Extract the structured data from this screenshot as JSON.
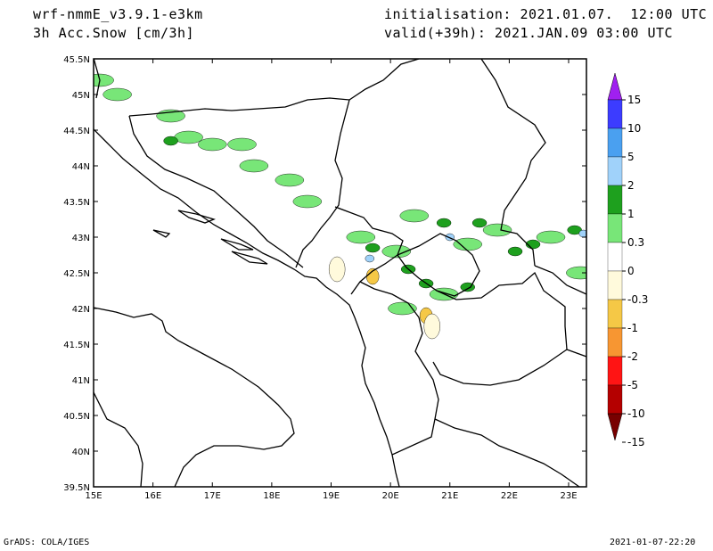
{
  "header": {
    "model": "wrf-nmmE_v3.9.1-e3km",
    "field": "3h Acc.Snow [cm/3h]",
    "init": "initialisation: 2021.01.07.  12:00 UTC",
    "valid": "valid(+39h): 2021.JAN.09 03:00 UTC"
  },
  "footer": {
    "credit": "GrADS: COLA/IGES",
    "timestamp": "2021-01-07-22:20"
  },
  "map": {
    "lon_ticks": [
      "15E",
      "16E",
      "17E",
      "18E",
      "19E",
      "20E",
      "21E",
      "22E",
      "23E"
    ],
    "lat_ticks": [
      "45.5N",
      "45N",
      "44.5N",
      "44N",
      "43.5N",
      "43N",
      "42.5N",
      "42N",
      "41.5N",
      "41N",
      "40.5N",
      "40N",
      "39.5N"
    ],
    "lon_range": [
      15,
      23.3
    ],
    "lat_range": [
      39.5,
      45.5
    ],
    "snow_patches": [
      {
        "lon": 15.1,
        "lat": 45.2,
        "cls": "0.3"
      },
      {
        "lon": 15.4,
        "lat": 45.0,
        "cls": "0.3"
      },
      {
        "lon": 16.3,
        "lat": 44.7,
        "cls": "0.3"
      },
      {
        "lon": 16.6,
        "lat": 44.4,
        "cls": "0.3"
      },
      {
        "lon": 17.0,
        "lat": 44.3,
        "cls": "0.3"
      },
      {
        "lon": 16.3,
        "lat": 44.35,
        "cls": "1"
      },
      {
        "lon": 17.5,
        "lat": 44.3,
        "cls": "0.3"
      },
      {
        "lon": 17.7,
        "lat": 44.0,
        "cls": "0.3"
      },
      {
        "lon": 18.3,
        "lat": 43.8,
        "cls": "0.3"
      },
      {
        "lon": 18.6,
        "lat": 43.5,
        "cls": "0.3"
      },
      {
        "lon": 19.5,
        "lat": 43.0,
        "cls": "0.3"
      },
      {
        "lon": 19.7,
        "lat": 42.85,
        "cls": "1"
      },
      {
        "lon": 19.65,
        "lat": 42.7,
        "cls": "2"
      },
      {
        "lon": 20.1,
        "lat": 42.8,
        "cls": "0.3"
      },
      {
        "lon": 20.4,
        "lat": 43.3,
        "cls": "0.3"
      },
      {
        "lon": 20.9,
        "lat": 43.2,
        "cls": "1"
      },
      {
        "lon": 21.0,
        "lat": 43.0,
        "cls": "2"
      },
      {
        "lon": 21.3,
        "lat": 42.9,
        "cls": "0.3"
      },
      {
        "lon": 21.5,
        "lat": 43.2,
        "cls": "1"
      },
      {
        "lon": 21.8,
        "lat": 43.1,
        "cls": "0.3"
      },
      {
        "lon": 22.1,
        "lat": 42.8,
        "cls": "1"
      },
      {
        "lon": 22.4,
        "lat": 42.9,
        "cls": "1"
      },
      {
        "lon": 22.7,
        "lat": 43.0,
        "cls": "0.3"
      },
      {
        "lon": 23.1,
        "lat": 43.1,
        "cls": "1"
      },
      {
        "lon": 23.25,
        "lat": 43.05,
        "cls": "2"
      },
      {
        "lon": 20.3,
        "lat": 42.55,
        "cls": "1"
      },
      {
        "lon": 20.6,
        "lat": 42.35,
        "cls": "1"
      },
      {
        "lon": 20.9,
        "lat": 42.2,
        "cls": "0.3"
      },
      {
        "lon": 21.3,
        "lat": 42.3,
        "cls": "1"
      },
      {
        "lon": 20.2,
        "lat": 42.0,
        "cls": "0.3"
      },
      {
        "lon": 23.2,
        "lat": 42.5,
        "cls": "0.3"
      }
    ],
    "melt_patches": [
      {
        "lon": 19.7,
        "lat": 42.45,
        "cls": "-1"
      },
      {
        "lon": 20.6,
        "lat": 41.9,
        "cls": "-1"
      },
      {
        "lon": 20.7,
        "lat": 41.75,
        "cls": "-0.3"
      },
      {
        "lon": 19.1,
        "lat": 42.55,
        "cls": "-0.3"
      }
    ]
  },
  "colorbar": {
    "labels": [
      "15",
      "10",
      "5",
      "2",
      "1",
      "0.3",
      "0",
      "-0.3",
      "-1",
      "-2",
      "-5",
      "-10",
      "-15"
    ],
    "colors": [
      "#3c3cff",
      "#4aa0f0",
      "#a0d2fa",
      "#1ea01e",
      "#78e678",
      "#ffffff",
      "#fffadc",
      "#f5c846",
      "#f79632",
      "#ff1414",
      "#b40000"
    ],
    "top_arrow": "#a020f0",
    "bottom_arrow": "#780000"
  }
}
